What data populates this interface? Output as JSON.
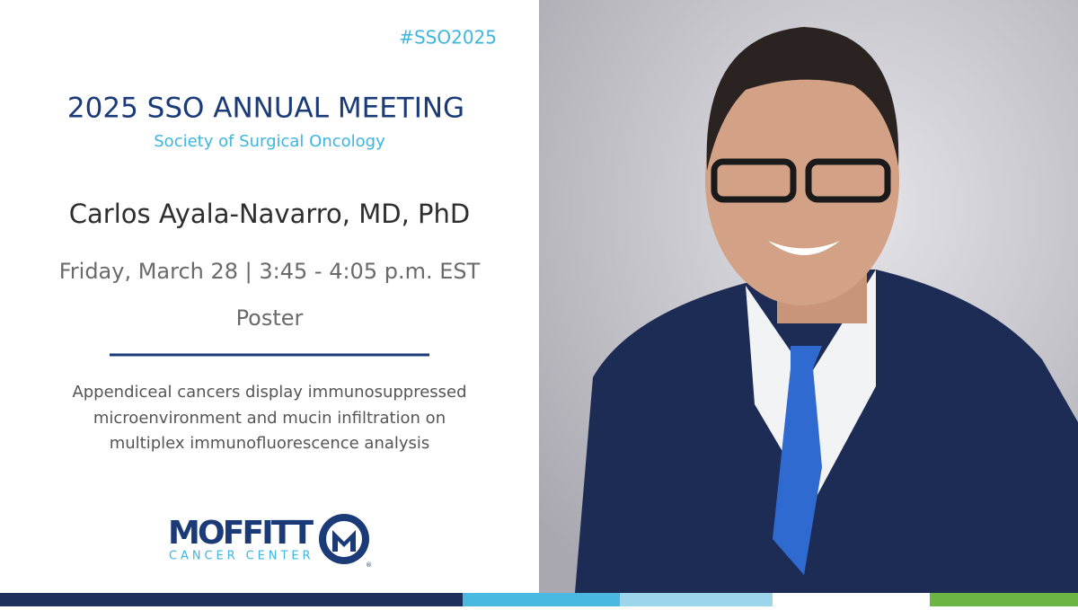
{
  "header": {
    "hashtag": "#SSO2025",
    "title": "2025 SSO ANNUAL MEETING",
    "subtitle": "Society of Surgical Oncology"
  },
  "speaker": {
    "name": "Carlos Ayala-Navarro, MD, PhD"
  },
  "session": {
    "datetime": "Friday, March 28 | 3:45 - 4:05 p.m. EST",
    "type": "Poster"
  },
  "abstract": {
    "lines": [
      "Appendiceal cancers display immunosuppressed",
      "microenvironment and mucin infiltration on",
      "multiplex immunofluorescence analysis"
    ]
  },
  "logo": {
    "name": "MOFFITT",
    "subtitle": "CANCER CENTER",
    "registered": "®"
  }
}
